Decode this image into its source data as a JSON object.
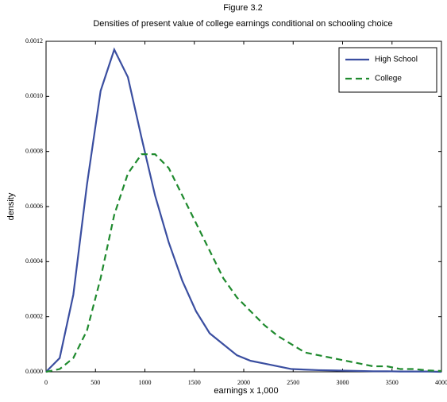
{
  "chart_data": {
    "type": "line",
    "title": "Figure 3.2",
    "subtitle": "Densities of present value of college earnings conditional on schooling choice",
    "x_label": "earnings x 1,000",
    "y_label": "density",
    "x": [
      0,
      138,
      276,
      414,
      552,
      690,
      828,
      966,
      1103,
      1241,
      1379,
      1517,
      1655,
      1793,
      1931,
      2069,
      2207,
      2345,
      2483,
      2621,
      2759,
      2897,
      3034,
      3172,
      3310,
      3448,
      3586,
      3724,
      3862,
      4000
    ],
    "series": [
      {
        "name": "High School",
        "color": "#3a4ea0",
        "dash": "solid",
        "values": [
          0,
          5e-05,
          0.00028,
          0.00068,
          0.00102,
          0.00117,
          0.00107,
          0.00085,
          0.00064,
          0.00047,
          0.00033,
          0.00022,
          0.00014,
          0.0001,
          6e-05,
          4e-05,
          3e-05,
          2e-05,
          1e-05,
          8e-06,
          6e-06,
          5e-06,
          4e-06,
          3e-06,
          2e-06,
          2e-06,
          1e-06,
          1e-06,
          1e-06,
          0
        ]
      },
      {
        "name": "College",
        "color": "#1f8a2e",
        "dash": "dashed",
        "values": [
          0,
          1e-05,
          5e-05,
          0.00015,
          0.00034,
          0.00057,
          0.00072,
          0.00079,
          0.00079,
          0.00074,
          0.00064,
          0.00054,
          0.00044,
          0.00034,
          0.00027,
          0.00022,
          0.00017,
          0.00013,
          0.0001,
          7e-05,
          6e-05,
          5e-05,
          4e-05,
          3e-05,
          2e-05,
          2e-05,
          1e-05,
          1e-05,
          5e-06,
          3e-06
        ]
      }
    ],
    "xlim": [
      0,
      4000
    ],
    "xticks": [
      0,
      500,
      1000,
      1500,
      2000,
      2500,
      3000,
      3500,
      4000
    ],
    "ylim": [
      0,
      0.0012
    ],
    "yticks": [
      {
        "value": 0,
        "label": "0.0000"
      },
      {
        "value": 0.0002,
        "label": "0.0002"
      },
      {
        "value": 0.0004,
        "label": "0.0004"
      },
      {
        "value": 0.0006,
        "label": "0.0006"
      },
      {
        "value": 0.0008,
        "label": "0.0008"
      },
      {
        "value": 0.001,
        "label": "0.0010"
      },
      {
        "value": 0.0012,
        "label": "0.0012"
      }
    ],
    "grid": false,
    "legend": "top-right"
  }
}
